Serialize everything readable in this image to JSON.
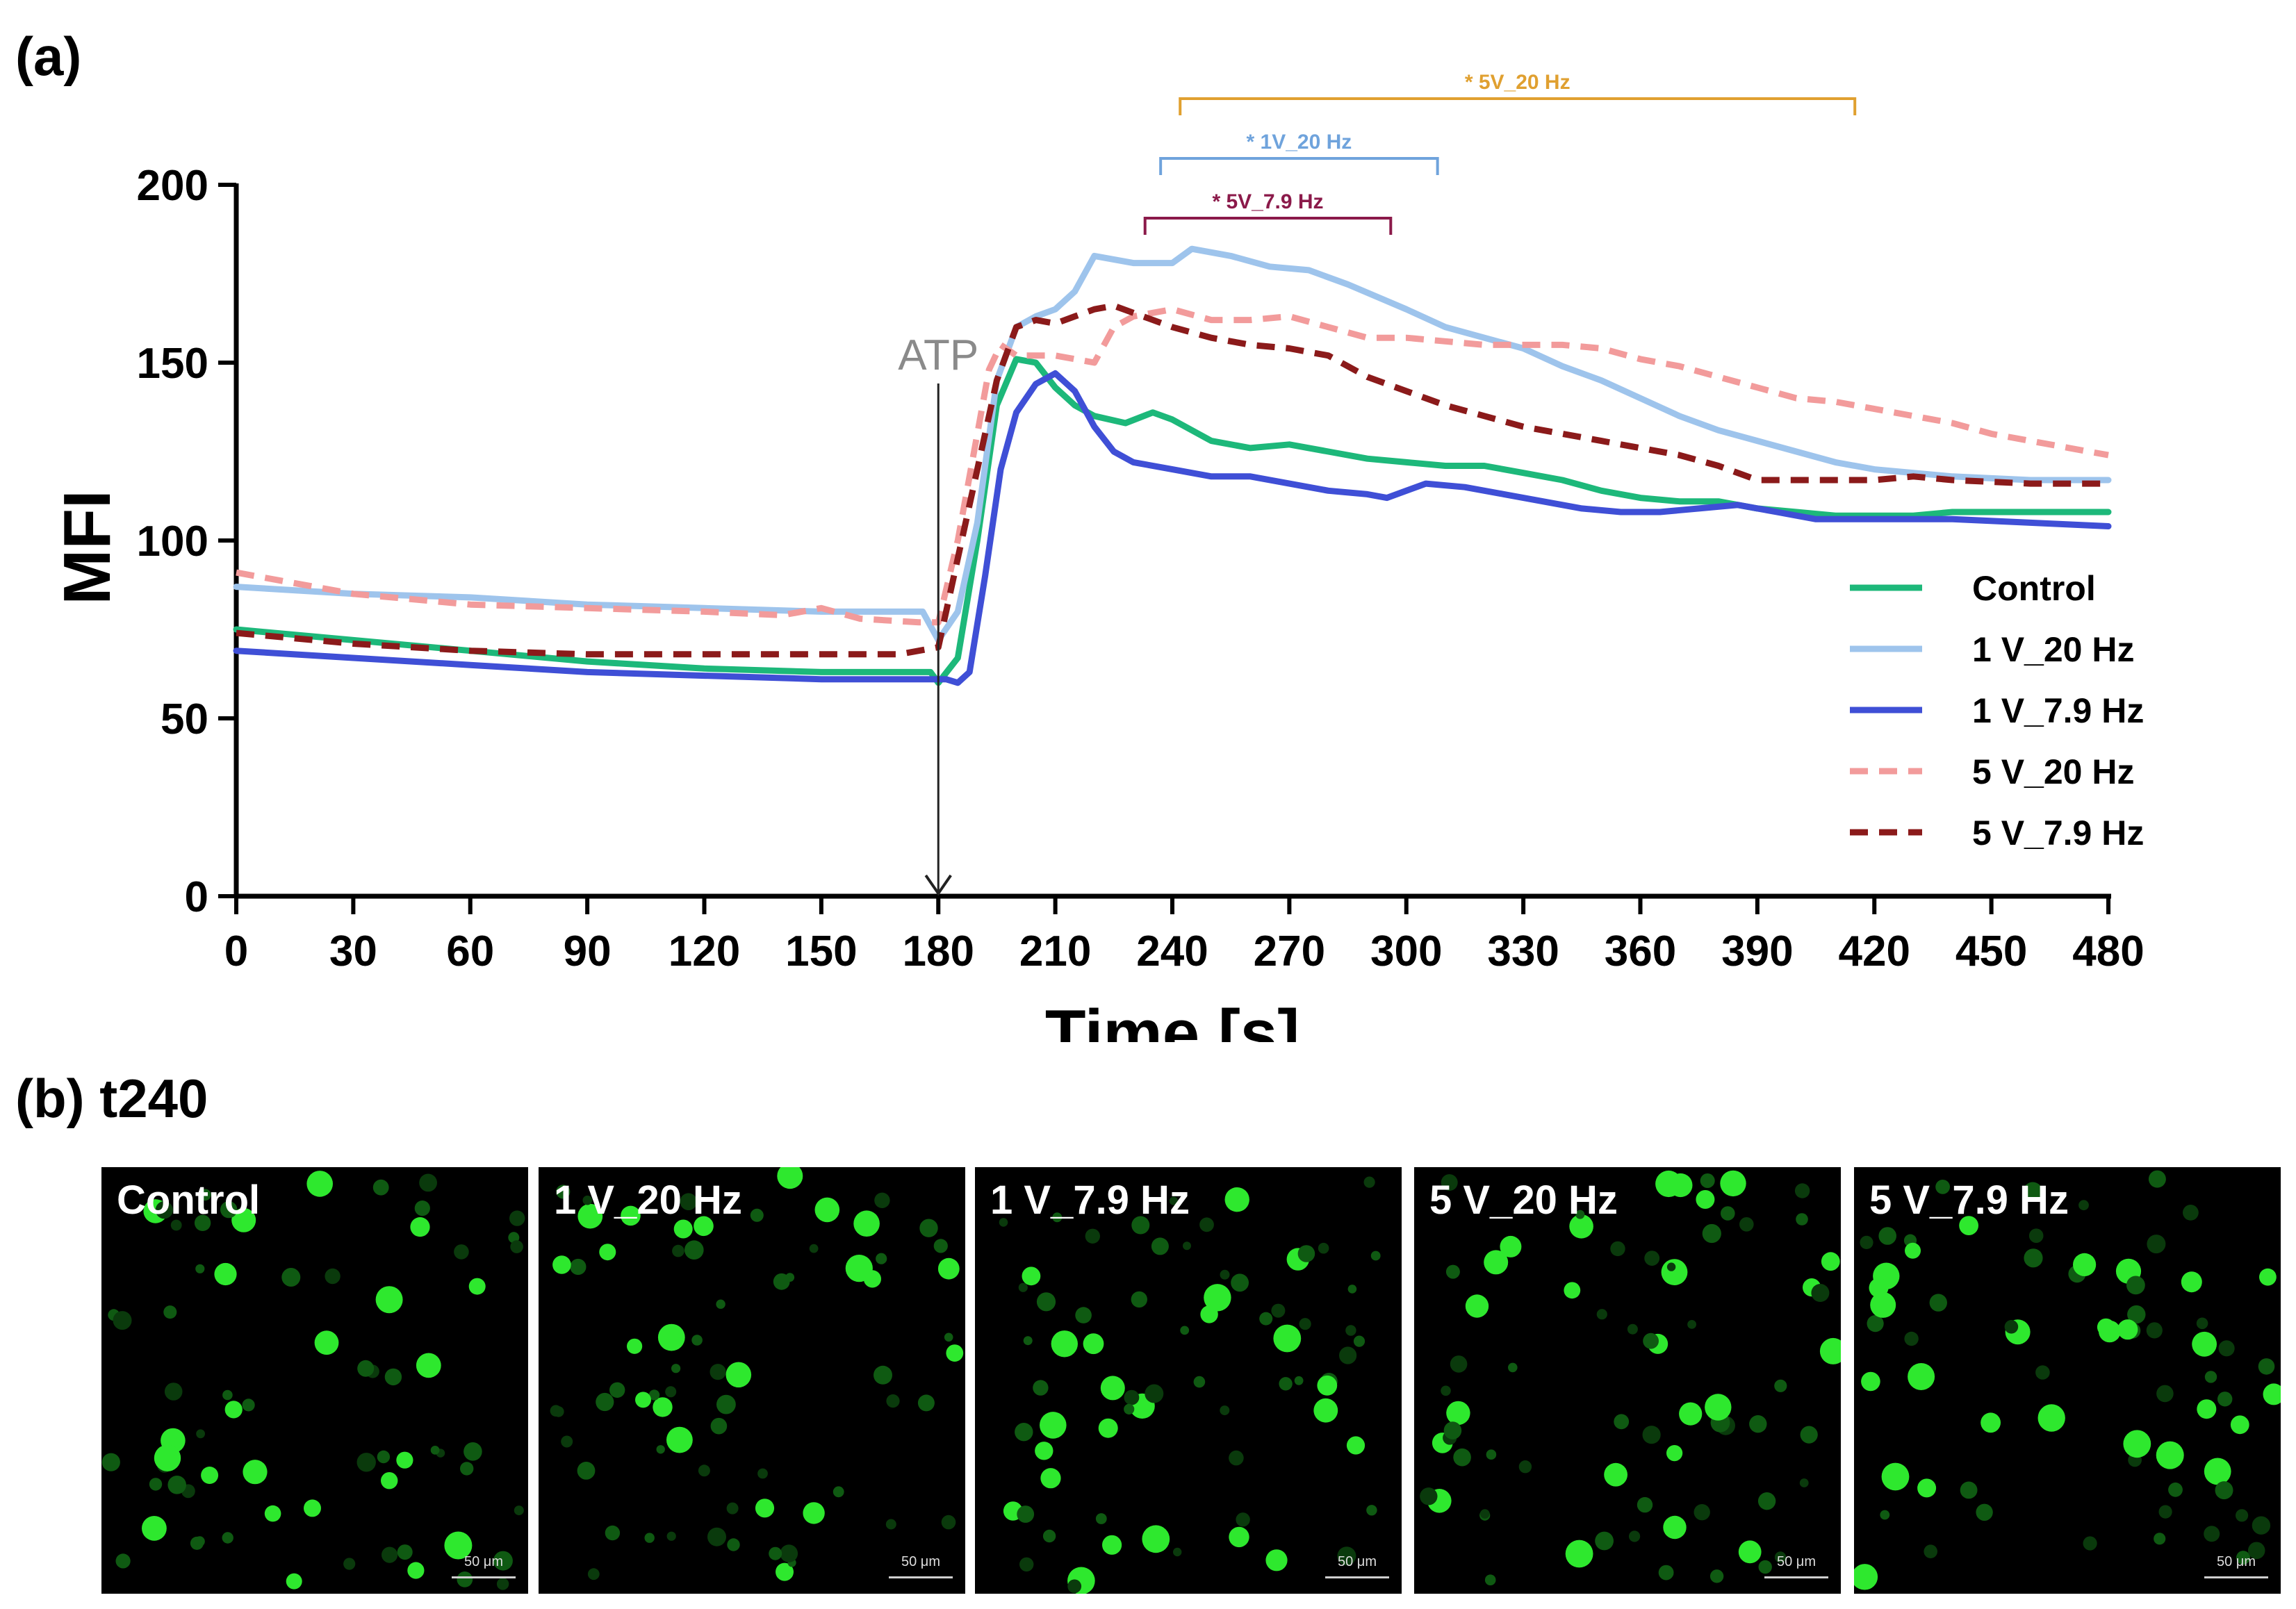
{
  "panel_a_label": "(a)",
  "panel_b_label": "(b) t240",
  "chart_data": {
    "type": "line",
    "xlabel": "Time [s]",
    "ylabel": "MFI",
    "xlim": [
      0,
      480
    ],
    "ylim": [
      0,
      200
    ],
    "xticks": [
      0,
      30,
      60,
      90,
      120,
      150,
      180,
      210,
      240,
      270,
      300,
      330,
      360,
      390,
      420,
      450,
      480
    ],
    "yticks": [
      0,
      50,
      100,
      150,
      200
    ],
    "legend_position": "right",
    "annotation": {
      "text": "ATP",
      "x": 180,
      "color": "#8a8a8a"
    },
    "significance_brackets": [
      {
        "label": "* 5V_20 Hz",
        "x_start": 242,
        "x_end": 415,
        "color": "#e0a030"
      },
      {
        "label": "* 1V_20 Hz",
        "x_start": 237,
        "x_end": 308,
        "color": "#6fa3dc"
      },
      {
        "label": "* 5V_7.9 Hz",
        "x_start": 233,
        "x_end": 296,
        "color": "#8b1a4a"
      }
    ],
    "series": [
      {
        "name": "Control",
        "color": "#1db87a",
        "dash": "solid",
        "points": [
          [
            0,
            75
          ],
          [
            30,
            72
          ],
          [
            60,
            69
          ],
          [
            90,
            66
          ],
          [
            120,
            64
          ],
          [
            150,
            63
          ],
          [
            178,
            63
          ],
          [
            180,
            60
          ],
          [
            185,
            67
          ],
          [
            190,
            100
          ],
          [
            195,
            138
          ],
          [
            200,
            151
          ],
          [
            205,
            150
          ],
          [
            210,
            143
          ],
          [
            215,
            138
          ],
          [
            220,
            135
          ],
          [
            228,
            133
          ],
          [
            235,
            136
          ],
          [
            240,
            134
          ],
          [
            250,
            128
          ],
          [
            260,
            126
          ],
          [
            270,
            127
          ],
          [
            280,
            125
          ],
          [
            290,
            123
          ],
          [
            300,
            122
          ],
          [
            310,
            121
          ],
          [
            320,
            121
          ],
          [
            330,
            119
          ],
          [
            340,
            117
          ],
          [
            350,
            114
          ],
          [
            360,
            112
          ],
          [
            370,
            111
          ],
          [
            380,
            111
          ],
          [
            390,
            109
          ],
          [
            400,
            108
          ],
          [
            410,
            107
          ],
          [
            420,
            107
          ],
          [
            430,
            107
          ],
          [
            440,
            108
          ],
          [
            450,
            108
          ],
          [
            460,
            108
          ],
          [
            470,
            108
          ],
          [
            480,
            108
          ]
        ]
      },
      {
        "name": "1 V_20 Hz",
        "color": "#9ec4ec",
        "dash": "solid",
        "points": [
          [
            0,
            87
          ],
          [
            30,
            85
          ],
          [
            60,
            84
          ],
          [
            90,
            82
          ],
          [
            120,
            81
          ],
          [
            150,
            80
          ],
          [
            176,
            80
          ],
          [
            180,
            72
          ],
          [
            185,
            80
          ],
          [
            190,
            105
          ],
          [
            195,
            145
          ],
          [
            200,
            160
          ],
          [
            205,
            163
          ],
          [
            210,
            165
          ],
          [
            215,
            170
          ],
          [
            220,
            180
          ],
          [
            230,
            178
          ],
          [
            240,
            178
          ],
          [
            245,
            182
          ],
          [
            255,
            180
          ],
          [
            265,
            177
          ],
          [
            275,
            176
          ],
          [
            285,
            172
          ],
          [
            300,
            165
          ],
          [
            310,
            160
          ],
          [
            320,
            157
          ],
          [
            330,
            154
          ],
          [
            340,
            149
          ],
          [
            350,
            145
          ],
          [
            360,
            140
          ],
          [
            370,
            135
          ],
          [
            380,
            131
          ],
          [
            390,
            128
          ],
          [
            400,
            125
          ],
          [
            410,
            122
          ],
          [
            420,
            120
          ],
          [
            430,
            119
          ],
          [
            440,
            118
          ],
          [
            460,
            117
          ],
          [
            480,
            117
          ]
        ]
      },
      {
        "name": "1 V_7.9 Hz",
        "color": "#3f4fd6",
        "dash": "solid",
        "points": [
          [
            0,
            69
          ],
          [
            30,
            67
          ],
          [
            60,
            65
          ],
          [
            90,
            63
          ],
          [
            120,
            62
          ],
          [
            150,
            61
          ],
          [
            182,
            61
          ],
          [
            185,
            60
          ],
          [
            188,
            63
          ],
          [
            192,
            90
          ],
          [
            196,
            120
          ],
          [
            200,
            136
          ],
          [
            205,
            144
          ],
          [
            210,
            147
          ],
          [
            215,
            142
          ],
          [
            220,
            132
          ],
          [
            225,
            125
          ],
          [
            230,
            122
          ],
          [
            240,
            120
          ],
          [
            250,
            118
          ],
          [
            260,
            118
          ],
          [
            270,
            116
          ],
          [
            280,
            114
          ],
          [
            290,
            113
          ],
          [
            295,
            112
          ],
          [
            305,
            116
          ],
          [
            315,
            115
          ],
          [
            325,
            113
          ],
          [
            335,
            111
          ],
          [
            345,
            109
          ],
          [
            355,
            108
          ],
          [
            365,
            108
          ],
          [
            375,
            109
          ],
          [
            385,
            110
          ],
          [
            395,
            108
          ],
          [
            405,
            106
          ],
          [
            415,
            106
          ],
          [
            425,
            106
          ],
          [
            440,
            106
          ],
          [
            460,
            105
          ],
          [
            480,
            104
          ]
        ]
      },
      {
        "name": "5 V_20 Hz",
        "color": "#f29b9b",
        "dash": "dashed",
        "points": [
          [
            0,
            91
          ],
          [
            30,
            85
          ],
          [
            60,
            82
          ],
          [
            90,
            81
          ],
          [
            120,
            80
          ],
          [
            140,
            79
          ],
          [
            150,
            81
          ],
          [
            160,
            78
          ],
          [
            175,
            77
          ],
          [
            180,
            77
          ],
          [
            185,
            100
          ],
          [
            190,
            130
          ],
          [
            193,
            148
          ],
          [
            196,
            155
          ],
          [
            200,
            152
          ],
          [
            210,
            152
          ],
          [
            220,
            150
          ],
          [
            225,
            160
          ],
          [
            230,
            163
          ],
          [
            240,
            165
          ],
          [
            250,
            162
          ],
          [
            260,
            162
          ],
          [
            270,
            163
          ],
          [
            280,
            160
          ],
          [
            290,
            157
          ],
          [
            300,
            157
          ],
          [
            310,
            156
          ],
          [
            320,
            155
          ],
          [
            330,
            155
          ],
          [
            340,
            155
          ],
          [
            350,
            154
          ],
          [
            360,
            151
          ],
          [
            370,
            149
          ],
          [
            380,
            146
          ],
          [
            390,
            143
          ],
          [
            400,
            140
          ],
          [
            410,
            139
          ],
          [
            420,
            137
          ],
          [
            430,
            135
          ],
          [
            440,
            133
          ],
          [
            450,
            130
          ],
          [
            460,
            128
          ],
          [
            470,
            126
          ],
          [
            480,
            124
          ]
        ]
      },
      {
        "name": "5 V_7.9 Hz",
        "color": "#8b1a1a",
        "dash": "dashed",
        "points": [
          [
            0,
            74
          ],
          [
            30,
            71
          ],
          [
            60,
            69
          ],
          [
            90,
            68
          ],
          [
            120,
            68
          ],
          [
            150,
            68
          ],
          [
            170,
            68
          ],
          [
            180,
            70
          ],
          [
            185,
            95
          ],
          [
            190,
            120
          ],
          [
            195,
            145
          ],
          [
            200,
            160
          ],
          [
            205,
            162
          ],
          [
            210,
            161
          ],
          [
            215,
            163
          ],
          [
            220,
            165
          ],
          [
            225,
            166
          ],
          [
            230,
            164
          ],
          [
            240,
            160
          ],
          [
            250,
            157
          ],
          [
            260,
            155
          ],
          [
            270,
            154
          ],
          [
            280,
            152
          ],
          [
            290,
            146
          ],
          [
            300,
            142
          ],
          [
            310,
            138
          ],
          [
            320,
            135
          ],
          [
            330,
            132
          ],
          [
            340,
            130
          ],
          [
            350,
            128
          ],
          [
            360,
            126
          ],
          [
            370,
            124
          ],
          [
            380,
            121
          ],
          [
            390,
            117
          ],
          [
            400,
            117
          ],
          [
            410,
            117
          ],
          [
            420,
            117
          ],
          [
            430,
            118
          ],
          [
            440,
            117
          ],
          [
            460,
            116
          ],
          [
            480,
            116
          ]
        ]
      }
    ]
  },
  "micrographs": [
    {
      "label": "Control",
      "scale_bar": "50 μm"
    },
    {
      "label": "1 V_20 Hz",
      "scale_bar": "50 μm"
    },
    {
      "label": "1 V_7.9 Hz",
      "scale_bar": "50 μm"
    },
    {
      "label": "5 V_20 Hz",
      "scale_bar": "50 μm"
    },
    {
      "label": "5 V_7.9 Hz",
      "scale_bar": "50 μm"
    }
  ]
}
